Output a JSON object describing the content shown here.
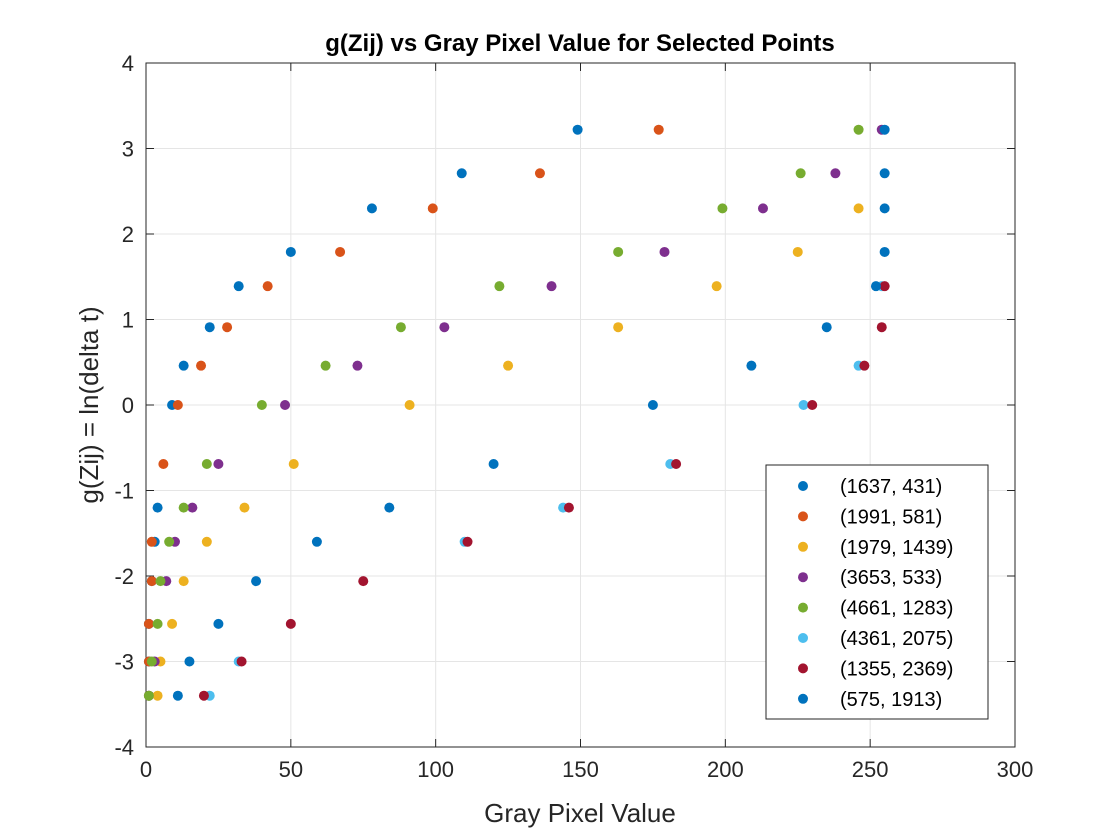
{
  "chart_data": {
    "type": "scatter",
    "title": "g(Zij) vs Gray Pixel Value for Selected Points",
    "xlabel": "Gray Pixel Value",
    "ylabel": "g(Zij) = ln(delta t)",
    "xlim": [
      0,
      300
    ],
    "ylim": [
      -4,
      4
    ],
    "xticks": [
      "0",
      "50",
      "100",
      "150",
      "200",
      "250",
      "300"
    ],
    "yticks": [
      "-4",
      "-3",
      "-2",
      "-1",
      "0",
      "1",
      "2",
      "3",
      "4"
    ],
    "grid": true,
    "legend_position": "bottom-right",
    "series": [
      {
        "name": "(1637, 431)",
        "color": "#0072BD",
        "x": [
          1,
          1,
          1,
          2,
          3,
          4,
          9,
          13,
          22,
          32,
          50,
          78,
          109,
          149
        ],
        "y": [
          -3.4,
          -3.0,
          -2.56,
          -2.06,
          -1.6,
          -1.2,
          0.0,
          0.46,
          0.91,
          1.39,
          1.79,
          2.3,
          2.71,
          3.22
        ]
      },
      {
        "name": "(1991, 581)",
        "color": "#D95319",
        "x": [
          1,
          1,
          1,
          2,
          2,
          6,
          11,
          19,
          28,
          42,
          67,
          99,
          136,
          177
        ],
        "y": [
          -3.4,
          -3.0,
          -2.56,
          -2.06,
          -1.6,
          -0.69,
          0.0,
          0.46,
          0.91,
          1.39,
          1.79,
          2.3,
          2.71,
          3.22
        ]
      },
      {
        "name": "(1979, 1439)",
        "color": "#EDB120",
        "x": [
          4,
          5,
          9,
          13,
          21,
          34,
          51,
          91,
          125,
          163,
          197,
          225,
          246
        ],
        "y": [
          -3.4,
          -3.0,
          -2.56,
          -2.06,
          -1.6,
          -1.2,
          -0.69,
          0.0,
          0.46,
          0.91,
          1.39,
          1.79,
          2.3
        ]
      },
      {
        "name": "(3653, 533)",
        "color": "#7E2F8E",
        "x": [
          3,
          7,
          10,
          16,
          25,
          48,
          73,
          103,
          140,
          179,
          213,
          238,
          254
        ],
        "y": [
          -3.0,
          -2.06,
          -1.6,
          -1.2,
          -0.69,
          0.0,
          0.46,
          0.91,
          1.39,
          1.79,
          2.3,
          2.71,
          3.22
        ]
      },
      {
        "name": "(4661, 1283)",
        "color": "#77AC30",
        "x": [
          1,
          2,
          4,
          5,
          8,
          13,
          21,
          40,
          62,
          88,
          122,
          163,
          199,
          226,
          246
        ],
        "y": [
          -3.4,
          -3.0,
          -2.56,
          -2.06,
          -1.6,
          -1.2,
          -0.69,
          0.0,
          0.46,
          0.91,
          1.39,
          1.79,
          2.3,
          2.71,
          3.22
        ]
      },
      {
        "name": "(4361, 2075)",
        "color": "#4DBEEE",
        "x": [
          22,
          32,
          110,
          144,
          181,
          227,
          246,
          254
        ],
        "y": [
          -3.4,
          -3.0,
          -1.6,
          -1.2,
          -0.69,
          0.0,
          0.46,
          1.39
        ]
      },
      {
        "name": "(1355, 2369)",
        "color": "#A2142F",
        "x": [
          20,
          33,
          50,
          75,
          111,
          146,
          183,
          230,
          248,
          254,
          255
        ],
        "y": [
          -3.4,
          -3.0,
          -2.56,
          -2.06,
          -1.6,
          -1.2,
          -0.69,
          0.0,
          0.46,
          0.91,
          1.39
        ]
      },
      {
        "name": "(575, 1913)",
        "color": "#0072BD",
        "x": [
          11,
          15,
          25,
          38,
          59,
          84,
          120,
          175,
          209,
          235,
          252,
          255,
          255,
          255,
          255
        ],
        "y": [
          -3.4,
          -3.0,
          -2.56,
          -2.06,
          -1.6,
          -1.2,
          -0.69,
          0.0,
          0.46,
          0.91,
          1.39,
          1.79,
          2.3,
          2.71,
          3.22
        ]
      }
    ]
  }
}
